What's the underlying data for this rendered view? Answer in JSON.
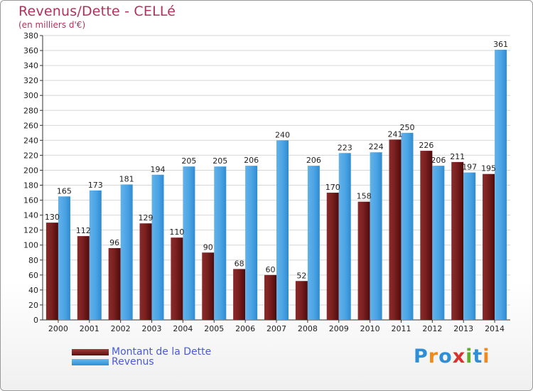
{
  "chart_data": {
    "type": "bar",
    "title": "Revenus/Dette - CELLé",
    "subtitle": "(en milliers d'€)",
    "categories": [
      "2000",
      "2001",
      "2002",
      "2003",
      "2004",
      "2005",
      "2006",
      "2007",
      "2008",
      "2009",
      "2010",
      "2011",
      "2012",
      "2013",
      "2014"
    ],
    "series": [
      {
        "name": "Montant de la Dette",
        "values": [
          130,
          112,
          96,
          129,
          110,
          90,
          68,
          60,
          52,
          170,
          158,
          241,
          226,
          211,
          195
        ]
      },
      {
        "name": "Revenus",
        "values": [
          165,
          173,
          181,
          194,
          205,
          205,
          206,
          240,
          206,
          223,
          224,
          250,
          206,
          197,
          361
        ]
      }
    ],
    "ylim": [
      0,
      380
    ],
    "ytick_step": 20,
    "xlabel": "",
    "ylabel": "",
    "grid": true,
    "legend": "bottom-left"
  },
  "legend": {
    "debt_label": "Montant de la Dette",
    "revenue_label": "Revenus"
  },
  "colors": {
    "title": "#b0325a",
    "debt_top": "#a33a3a",
    "debt_bottom": "#5a0f0f",
    "revenue_top": "#6cb8ea",
    "revenue_bottom": "#2d8fd4",
    "legend_text": "#4a5ad8"
  },
  "logo": {
    "text": "Proxiti",
    "letters": [
      "P",
      "r",
      "o",
      "x",
      "i",
      "t",
      "i"
    ],
    "letter_colors": [
      "#2e8fd6",
      "#f08a1c",
      "#2e8fd6",
      "#d8322f",
      "#5fae2e",
      "#2e8fd6",
      "#f08a1c"
    ]
  }
}
